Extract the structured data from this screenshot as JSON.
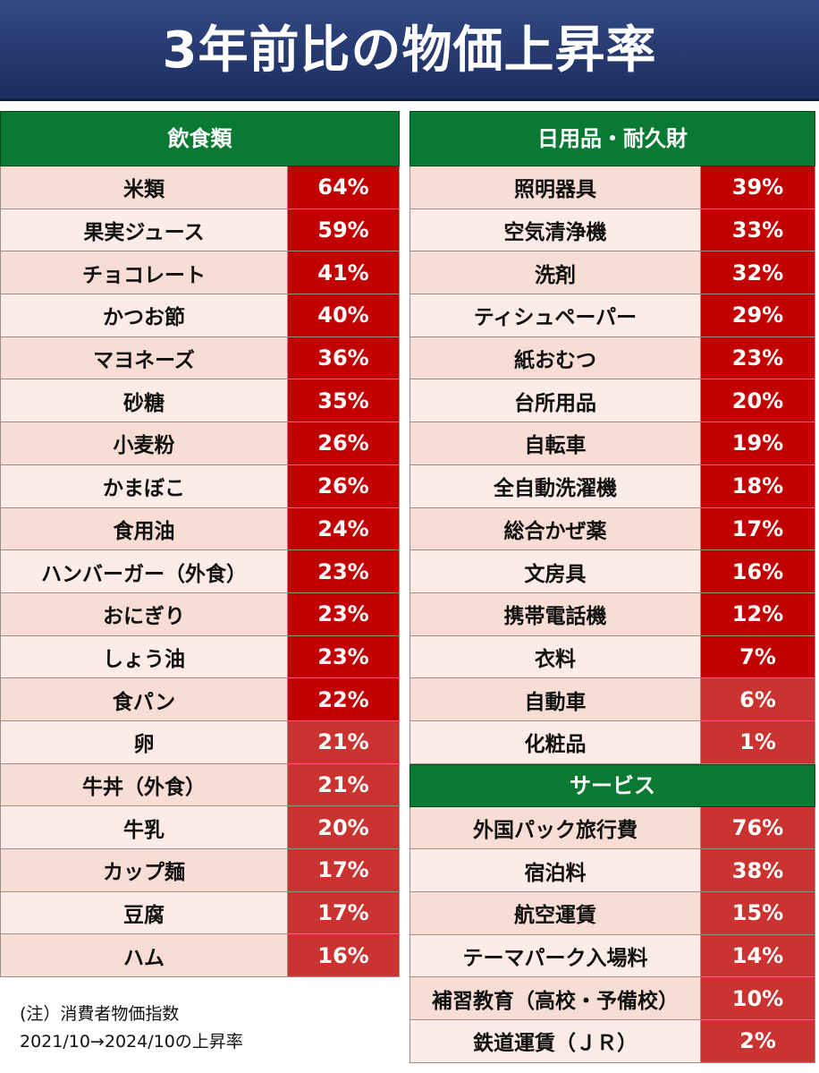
{
  "title": "3年前比の物価上昇率",
  "food": {
    "header": "飲食類",
    "items": [
      {
        "name": "米類",
        "value": "64%",
        "tone": "dark"
      },
      {
        "name": "果実ジュース",
        "value": "59%",
        "tone": "dark"
      },
      {
        "name": "チョコレート",
        "value": "41%",
        "tone": "dark"
      },
      {
        "name": "かつお節",
        "value": "40%",
        "tone": "dark"
      },
      {
        "name": "マヨネーズ",
        "value": "36%",
        "tone": "dark"
      },
      {
        "name": "砂糖",
        "value": "35%",
        "tone": "dark"
      },
      {
        "name": "小麦粉",
        "value": "26%",
        "tone": "dark"
      },
      {
        "name": "かまぼこ",
        "value": "26%",
        "tone": "dark"
      },
      {
        "name": "食用油",
        "value": "24%",
        "tone": "dark"
      },
      {
        "name": "ハンバーガー（外食）",
        "value": "23%",
        "tone": "dark"
      },
      {
        "name": "おにぎり",
        "value": "23%",
        "tone": "dark"
      },
      {
        "name": "しょう油",
        "value": "23%",
        "tone": "dark"
      },
      {
        "name": "食パン",
        "value": "22%",
        "tone": "dark"
      },
      {
        "name": "卵",
        "value": "21%",
        "tone": "mid"
      },
      {
        "name": "牛丼（外食）",
        "value": "21%",
        "tone": "mid"
      },
      {
        "name": "牛乳",
        "value": "20%",
        "tone": "mid"
      },
      {
        "name": "カップ麺",
        "value": "17%",
        "tone": "mid"
      },
      {
        "name": "豆腐",
        "value": "17%",
        "tone": "mid"
      },
      {
        "name": "ハム",
        "value": "16%",
        "tone": "mid"
      }
    ]
  },
  "goods": {
    "header": "日用品・耐久財",
    "items": [
      {
        "name": "照明器具",
        "value": "39%",
        "tone": "dark"
      },
      {
        "name": "空気清浄機",
        "value": "33%",
        "tone": "dark"
      },
      {
        "name": "洗剤",
        "value": "32%",
        "tone": "dark"
      },
      {
        "name": "ティシュペーパー",
        "value": "29%",
        "tone": "dark"
      },
      {
        "name": "紙おむつ",
        "value": "23%",
        "tone": "dark"
      },
      {
        "name": "台所用品",
        "value": "20%",
        "tone": "dark"
      },
      {
        "name": "自転車",
        "value": "19%",
        "tone": "dark"
      },
      {
        "name": "全自動洗濯機",
        "value": "18%",
        "tone": "dark"
      },
      {
        "name": "総合かぜ薬",
        "value": "17%",
        "tone": "dark"
      },
      {
        "name": "文房具",
        "value": "16%",
        "tone": "dark"
      },
      {
        "name": "携帯電話機",
        "value": "12%",
        "tone": "dark"
      },
      {
        "name": "衣料",
        "value": "7%",
        "tone": "dark"
      },
      {
        "name": "自動車",
        "value": "6%",
        "tone": "mid"
      },
      {
        "name": "化粧品",
        "value": "1%",
        "tone": "mid"
      }
    ]
  },
  "services": {
    "header": "サービス",
    "items": [
      {
        "name": "外国パック旅行費",
        "value": "76%",
        "tone": "mid"
      },
      {
        "name": "宿泊料",
        "value": "38%",
        "tone": "mid"
      },
      {
        "name": "航空運賃",
        "value": "15%",
        "tone": "mid"
      },
      {
        "name": "テーマパーク入場料",
        "value": "14%",
        "tone": "mid"
      },
      {
        "name": "補習教育（高校・予備校）",
        "value": "10%",
        "tone": "mid"
      },
      {
        "name": "鉄道運賃（ＪＲ）",
        "value": "2%",
        "tone": "mid"
      }
    ]
  },
  "note": {
    "line1": "(注）消費者物価指数",
    "line2": "2021/10→2024/10の上昇率"
  },
  "colors": {
    "header_bg": "#1c2d5f",
    "section_bg": "#087a33",
    "value_dark": "#c20000",
    "value_mid": "#cb3330",
    "row_odd": "#f8ddd4",
    "row_even": "#fcebe6"
  }
}
